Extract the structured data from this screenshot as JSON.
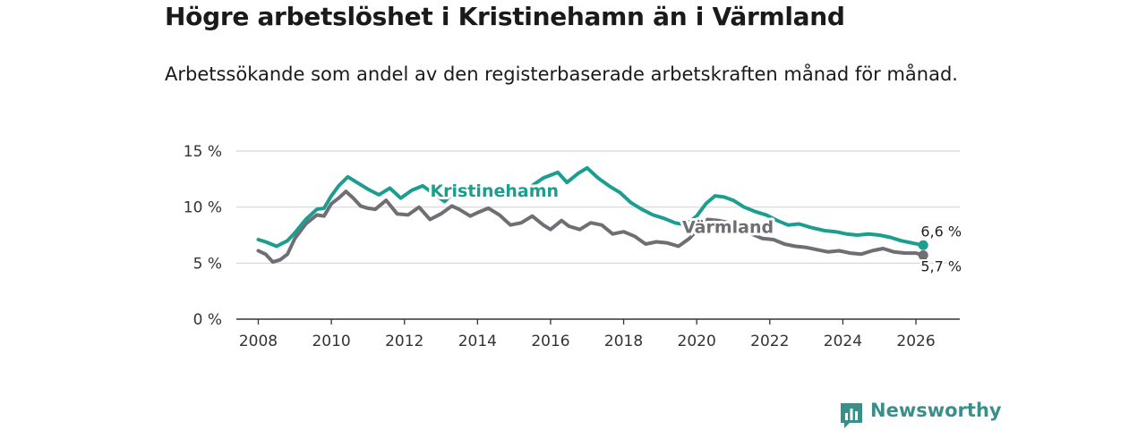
{
  "title": "Högre arbetslöshet i Kristinehamn än i Värmland",
  "subtitle": "Arbetssökande som andel av den registerbaserade arbetskraften månad för månad.",
  "brand": "Newsworthy",
  "colors": {
    "kristinehamn": "#1b9e90",
    "varmland": "#6e6e73",
    "grid": "#d6d6d6",
    "axis": "#333333",
    "brand": "#3b8f8a"
  },
  "chart_data": {
    "type": "line",
    "title": "Högre arbetslöshet i Kristinehamn än i Värmland",
    "xlabel": "",
    "ylabel": "",
    "xlim": [
      2007.4,
      2027.2
    ],
    "ylim": [
      0,
      15
    ],
    "y_ticks": [
      0,
      5,
      10,
      15
    ],
    "y_tick_labels": [
      "0 %",
      "5 %",
      "10 %",
      "15 %"
    ],
    "x_ticks": [
      2008,
      2010,
      2012,
      2014,
      2016,
      2018,
      2020,
      2022,
      2024,
      2026
    ],
    "x_tick_labels": [
      "2008",
      "2010",
      "2012",
      "2014",
      "2016",
      "2018",
      "2020",
      "2022",
      "2024",
      "2026"
    ],
    "grid": true,
    "series": [
      {
        "name": "Kristinehamn",
        "end_label": "6,6 %",
        "end_value": 6.6,
        "points": [
          [
            2008.0,
            7.1
          ],
          [
            2008.2,
            6.9
          ],
          [
            2008.5,
            6.5
          ],
          [
            2008.8,
            7.0
          ],
          [
            2009.0,
            7.7
          ],
          [
            2009.3,
            8.9
          ],
          [
            2009.6,
            9.8
          ],
          [
            2009.8,
            9.9
          ],
          [
            2010.0,
            11.0
          ],
          [
            2010.2,
            11.9
          ],
          [
            2010.45,
            12.7
          ],
          [
            2010.7,
            12.2
          ],
          [
            2011.0,
            11.6
          ],
          [
            2011.3,
            11.1
          ],
          [
            2011.6,
            11.7
          ],
          [
            2011.9,
            10.8
          ],
          [
            2012.2,
            11.5
          ],
          [
            2012.5,
            11.9
          ],
          [
            2012.8,
            11.2
          ],
          [
            2013.1,
            10.5
          ],
          [
            2013.5,
            11.8
          ],
          [
            2013.8,
            11.3
          ],
          [
            2014.2,
            10.9
          ],
          [
            2014.6,
            11.7
          ],
          [
            2015.0,
            11.4
          ],
          [
            2015.4,
            11.7
          ],
          [
            2015.8,
            12.6
          ],
          [
            2016.2,
            13.1
          ],
          [
            2016.45,
            12.2
          ],
          [
            2016.75,
            13.0
          ],
          [
            2017.0,
            13.5
          ],
          [
            2017.3,
            12.6
          ],
          [
            2017.6,
            11.9
          ],
          [
            2017.9,
            11.3
          ],
          [
            2018.2,
            10.4
          ],
          [
            2018.5,
            9.8
          ],
          [
            2018.8,
            9.3
          ],
          [
            2019.1,
            9.0
          ],
          [
            2019.4,
            8.6
          ],
          [
            2019.7,
            8.4
          ],
          [
            2020.0,
            9.2
          ],
          [
            2020.25,
            10.3
          ],
          [
            2020.5,
            11.0
          ],
          [
            2020.75,
            10.9
          ],
          [
            2021.0,
            10.6
          ],
          [
            2021.3,
            10.0
          ],
          [
            2021.6,
            9.6
          ],
          [
            2021.9,
            9.3
          ],
          [
            2022.2,
            8.8
          ],
          [
            2022.5,
            8.4
          ],
          [
            2022.8,
            8.5
          ],
          [
            2023.1,
            8.2
          ],
          [
            2023.5,
            7.9
          ],
          [
            2023.8,
            7.8
          ],
          [
            2024.1,
            7.6
          ],
          [
            2024.4,
            7.5
          ],
          [
            2024.7,
            7.6
          ],
          [
            2025.0,
            7.5
          ],
          [
            2025.3,
            7.3
          ],
          [
            2025.6,
            7.0
          ],
          [
            2025.9,
            6.8
          ],
          [
            2026.2,
            6.6
          ]
        ]
      },
      {
        "name": "Värmland",
        "end_label": "5,7 %",
        "end_value": 5.7,
        "points": [
          [
            2008.0,
            6.1
          ],
          [
            2008.2,
            5.8
          ],
          [
            2008.4,
            5.1
          ],
          [
            2008.6,
            5.3
          ],
          [
            2008.8,
            5.8
          ],
          [
            2009.0,
            7.2
          ],
          [
            2009.3,
            8.5
          ],
          [
            2009.6,
            9.3
          ],
          [
            2009.8,
            9.2
          ],
          [
            2010.0,
            10.3
          ],
          [
            2010.2,
            10.8
          ],
          [
            2010.4,
            11.4
          ],
          [
            2010.6,
            10.8
          ],
          [
            2010.8,
            10.1
          ],
          [
            2011.0,
            9.9
          ],
          [
            2011.2,
            9.8
          ],
          [
            2011.5,
            10.6
          ],
          [
            2011.8,
            9.4
          ],
          [
            2012.1,
            9.3
          ],
          [
            2012.4,
            10.0
          ],
          [
            2012.7,
            8.9
          ],
          [
            2013.0,
            9.4
          ],
          [
            2013.3,
            10.1
          ],
          [
            2013.5,
            9.8
          ],
          [
            2013.8,
            9.2
          ],
          [
            2014.0,
            9.5
          ],
          [
            2014.3,
            9.9
          ],
          [
            2014.6,
            9.3
          ],
          [
            2014.9,
            8.4
          ],
          [
            2015.2,
            8.6
          ],
          [
            2015.5,
            9.2
          ],
          [
            2015.8,
            8.4
          ],
          [
            2016.0,
            8.0
          ],
          [
            2016.3,
            8.8
          ],
          [
            2016.5,
            8.3
          ],
          [
            2016.8,
            8.0
          ],
          [
            2017.1,
            8.6
          ],
          [
            2017.4,
            8.4
          ],
          [
            2017.7,
            7.6
          ],
          [
            2018.0,
            7.8
          ],
          [
            2018.3,
            7.4
          ],
          [
            2018.6,
            6.7
          ],
          [
            2018.9,
            6.9
          ],
          [
            2019.2,
            6.8
          ],
          [
            2019.5,
            6.5
          ],
          [
            2019.8,
            7.2
          ],
          [
            2020.1,
            8.3
          ],
          [
            2020.3,
            8.9
          ],
          [
            2020.6,
            8.8
          ],
          [
            2020.9,
            8.6
          ],
          [
            2021.2,
            8.1
          ],
          [
            2021.5,
            7.6
          ],
          [
            2021.8,
            7.2
          ],
          [
            2022.1,
            7.1
          ],
          [
            2022.4,
            6.7
          ],
          [
            2022.7,
            6.5
          ],
          [
            2023.0,
            6.4
          ],
          [
            2023.3,
            6.2
          ],
          [
            2023.6,
            6.0
          ],
          [
            2023.9,
            6.1
          ],
          [
            2024.2,
            5.9
          ],
          [
            2024.5,
            5.8
          ],
          [
            2024.8,
            6.1
          ],
          [
            2025.1,
            6.3
          ],
          [
            2025.4,
            6.0
          ],
          [
            2025.7,
            5.9
          ],
          [
            2026.0,
            5.9
          ],
          [
            2026.2,
            5.7
          ]
        ]
      }
    ]
  }
}
